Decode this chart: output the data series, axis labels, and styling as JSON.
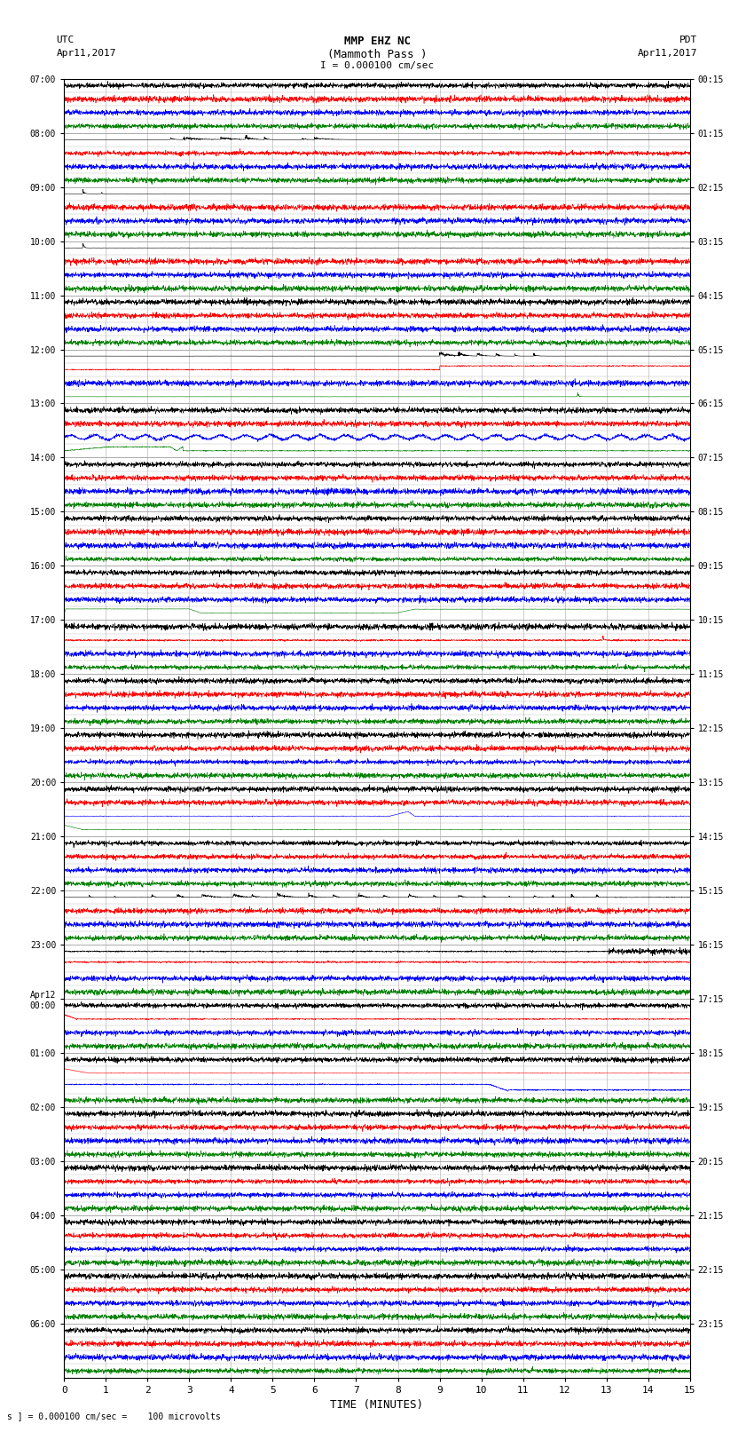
{
  "title_line1": "MMP EHZ NC",
  "title_line2": "(Mammoth Pass )",
  "title_line3": "I = 0.000100 cm/sec",
  "left_header_line1": "UTC",
  "left_header_line2": "Apr11,2017",
  "right_header_line1": "PDT",
  "right_header_line2": "Apr11,2017",
  "xlabel": "TIME (MINUTES)",
  "footer": "s ] = 0.000100 cm/sec =    100 microvolts",
  "bg_color": "#ffffff",
  "grid_color": "#aaaaaa",
  "trace_colors": [
    "black",
    "red",
    "blue",
    "green"
  ],
  "xlim": [
    0,
    15
  ],
  "xticks": [
    0,
    1,
    2,
    3,
    4,
    5,
    6,
    7,
    8,
    9,
    10,
    11,
    12,
    13,
    14,
    15
  ],
  "left_ytick_labels": [
    "07:00",
    "08:00",
    "09:00",
    "10:00",
    "11:00",
    "12:00",
    "13:00",
    "14:00",
    "15:00",
    "16:00",
    "17:00",
    "18:00",
    "19:00",
    "20:00",
    "21:00",
    "22:00",
    "23:00",
    "Apr12\n00:00",
    "01:00",
    "02:00",
    "03:00",
    "04:00",
    "05:00",
    "06:00"
  ],
  "right_ytick_labels": [
    "00:15",
    "01:15",
    "02:15",
    "03:15",
    "04:15",
    "05:15",
    "06:15",
    "07:15",
    "08:15",
    "09:15",
    "10:15",
    "11:15",
    "12:15",
    "13:15",
    "14:15",
    "15:15",
    "16:15",
    "17:15",
    "18:15",
    "19:15",
    "20:15",
    "21:15",
    "22:15",
    "23:15"
  ],
  "n_rows": 24,
  "n_channels": 4,
  "n_pts": 3000
}
